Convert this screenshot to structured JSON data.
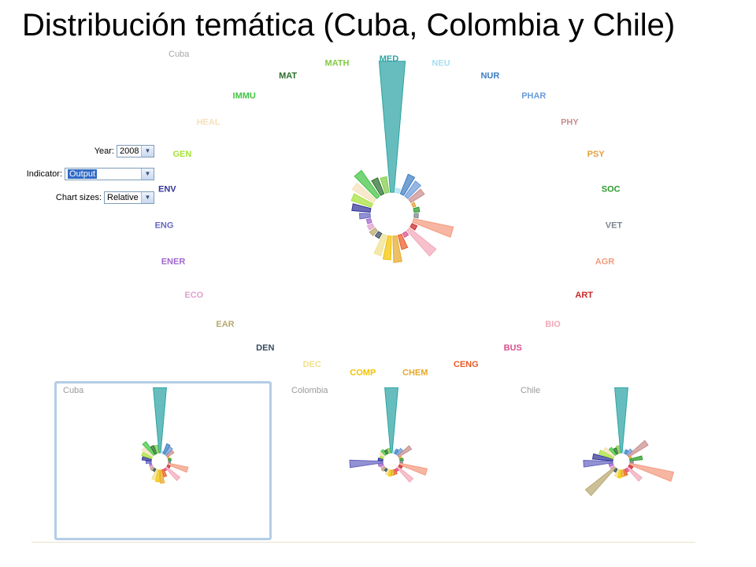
{
  "slide": {
    "title": "Distribución temática (Cuba, Colombia y Chile)"
  },
  "controls": {
    "year_label": "Year:",
    "year_value": "2008",
    "indicator_label": "Indicator:",
    "indicator_value": "Output",
    "sizes_label": "Chart sizes:",
    "sizes_value": "Relative"
  },
  "chart_data": [
    {
      "type": "radial-bar",
      "title": "",
      "country_label": "Cuba",
      "categories": [
        "MED",
        "NEU",
        "NUR",
        "PHAR",
        "PHY",
        "PSY",
        "SOC",
        "VET",
        "AGR",
        "ART",
        "BIO",
        "BUS",
        "CENG",
        "CHEM",
        "COMP",
        "DEC",
        "DEN",
        "EAR",
        "ECO",
        "ENER",
        "ENG",
        "ENV",
        "GEN",
        "HEAL",
        "IMMU",
        "MAT",
        "MATH"
      ],
      "colors": [
        "#2ca3a3",
        "#a8dff2",
        "#3d7ec2",
        "#6b9bd8",
        "#c98e8e",
        "#e3a03a",
        "#2a9a2a",
        "#7d8590",
        "#f39a7e",
        "#c82828",
        "#f2a8b8",
        "#d8508c",
        "#e85c28",
        "#e8a828",
        "#f2c200",
        "#f0e08e",
        "#38495e",
        "#b8a870",
        "#e0a0cf",
        "#9f66cc",
        "#6666c2",
        "#333399",
        "#a6e03a",
        "#f6e0b8",
        "#43c443",
        "#2a6e2a",
        "#82cc47"
      ],
      "values": [
        100,
        2,
        15,
        13,
        11,
        1,
        3,
        2,
        30,
        3,
        25,
        2,
        10,
        19,
        17,
        15,
        3,
        4,
        3,
        2,
        7,
        13,
        15,
        18,
        23,
        12,
        11
      ]
    },
    {
      "type": "radial-bar",
      "country_label": "Cuba",
      "values": [
        100,
        2,
        15,
        13,
        11,
        1,
        3,
        2,
        30,
        3,
        25,
        2,
        10,
        19,
        17,
        15,
        3,
        4,
        3,
        2,
        7,
        13,
        15,
        18,
        23,
        12,
        11
      ]
    },
    {
      "type": "radial-bar",
      "country_label": "Colombia",
      "values": [
        100,
        3,
        6,
        10,
        22,
        2,
        4,
        3,
        42,
        4,
        28,
        3,
        6,
        7,
        8,
        7,
        3,
        5,
        4,
        6,
        50,
        6,
        4,
        7,
        8,
        5,
        6
      ]
    },
    {
      "type": "radial-bar",
      "country_label": "Chile",
      "values": [
        100,
        3,
        5,
        9,
        34,
        2,
        18,
        4,
        68,
        5,
        26,
        4,
        8,
        9,
        11,
        10,
        4,
        56,
        5,
        5,
        44,
        30,
        22,
        18,
        12,
        8,
        10
      ]
    }
  ]
}
